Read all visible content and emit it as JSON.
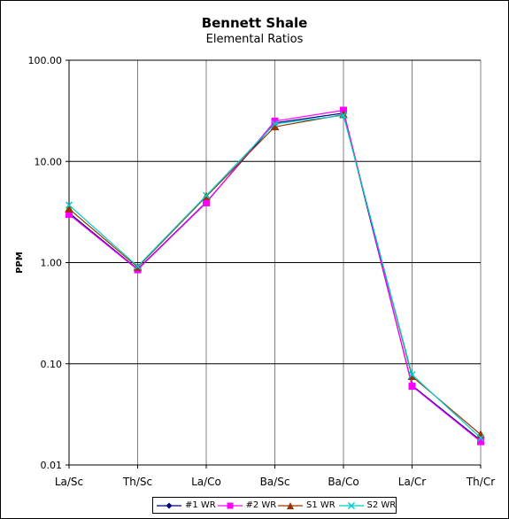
{
  "chart_data": {
    "type": "line",
    "title": "Bennett Shale",
    "subtitle": "Elemental Ratios",
    "xlabel": "",
    "ylabel": "PPM",
    "yscale": "log",
    "ylim": [
      0.01,
      100
    ],
    "yticks": [
      "0.01",
      "0.10",
      "1.00",
      "10.00",
      "100.00"
    ],
    "categories": [
      "La/Sc",
      "Th/Sc",
      "La/Co",
      "Ba/Sc",
      "Ba/Co",
      "La/Cr",
      "Th/Cr"
    ],
    "grid": "on",
    "legend_position": "bottom",
    "series": [
      {
        "name": "#1 WR",
        "color": "#000080",
        "marker": "diamond",
        "values": [
          3.1,
          0.86,
          3.95,
          24.0,
          30.0,
          0.061,
          0.0175
        ]
      },
      {
        "name": "#2 WR",
        "color": "#FF00FF",
        "marker": "square",
        "values": [
          3.0,
          0.85,
          3.9,
          25.0,
          32.0,
          0.06,
          0.017
        ]
      },
      {
        "name": "S1 WR",
        "color": "#993300",
        "marker": "triangle",
        "values": [
          3.4,
          0.9,
          4.5,
          22.0,
          29.0,
          0.075,
          0.02
        ]
      },
      {
        "name": "S2 WR",
        "color": "#00CCCC",
        "marker": "x",
        "values": [
          3.7,
          0.92,
          4.6,
          23.5,
          28.5,
          0.078,
          0.0185
        ]
      }
    ]
  }
}
